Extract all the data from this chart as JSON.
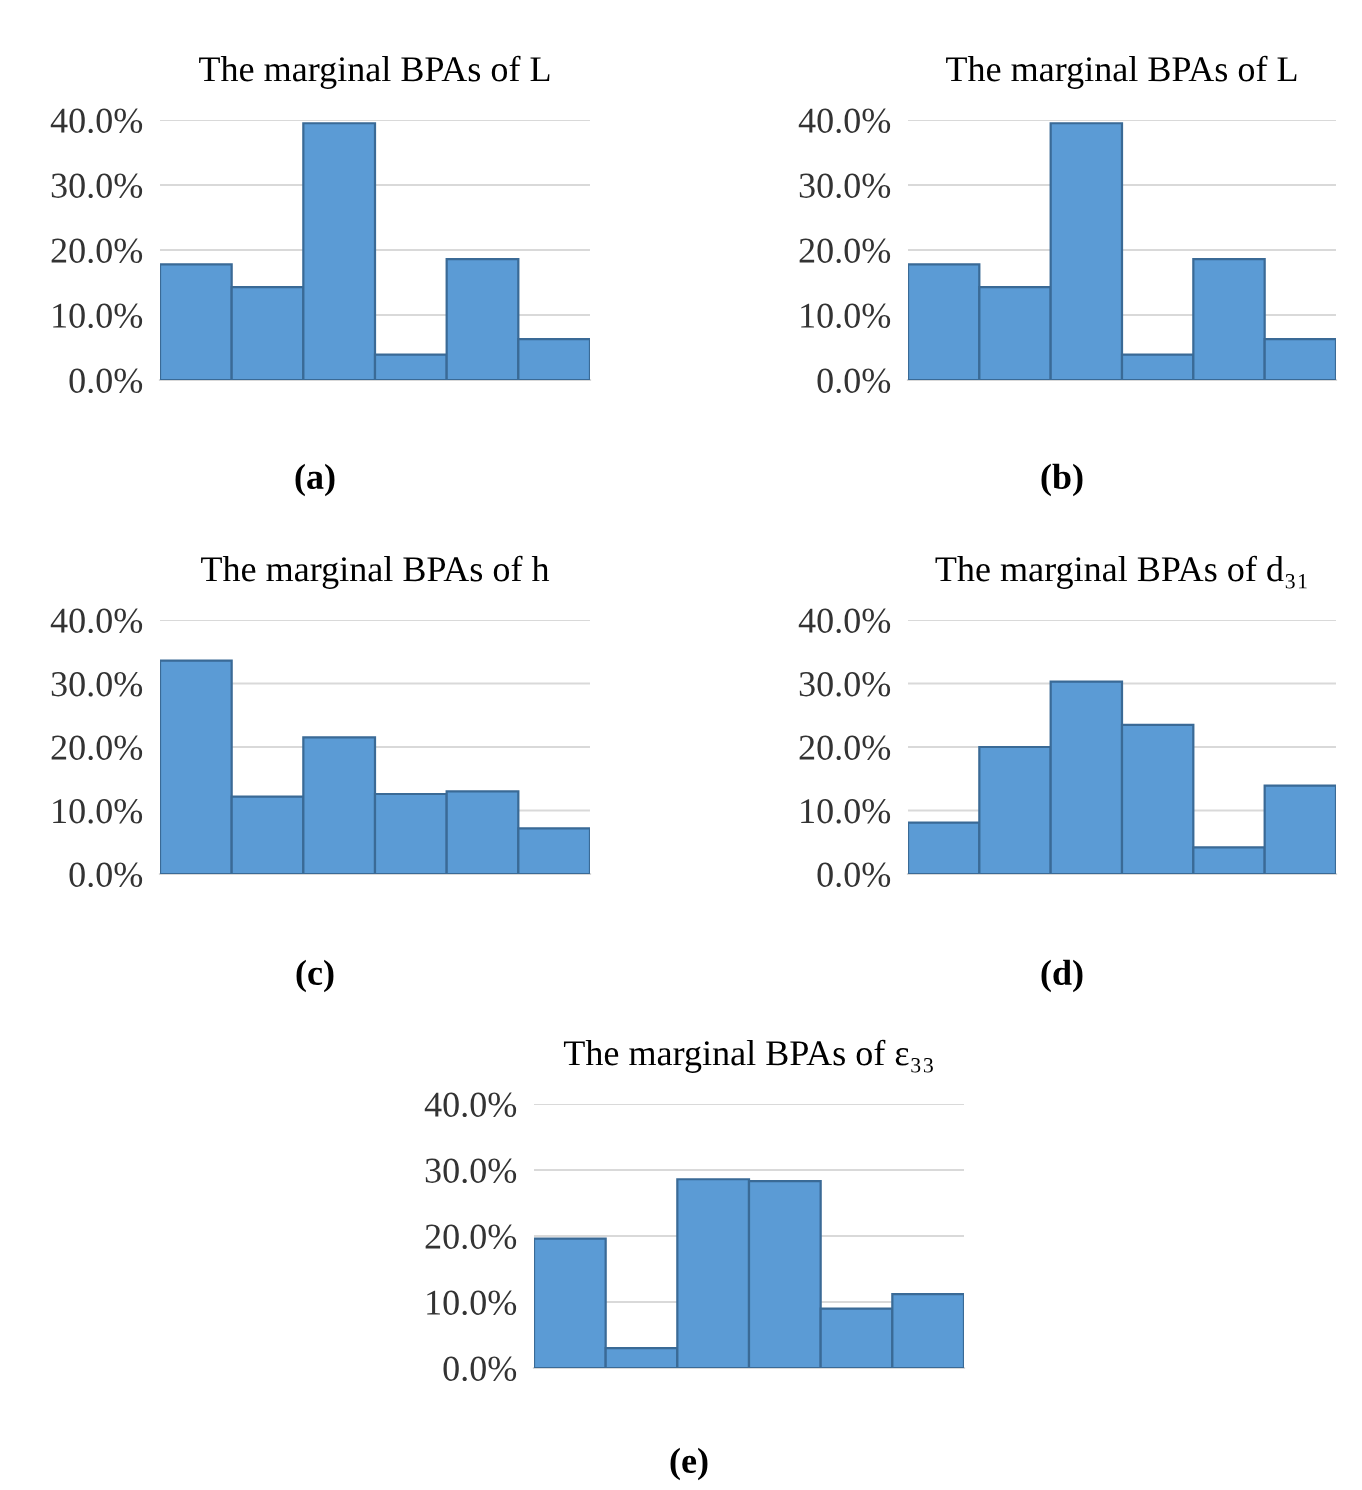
{
  "chart_data": [
    {
      "type": "bar",
      "title": "The marginal BPAs of L",
      "categories": [
        null,
        null,
        null,
        null,
        null,
        null
      ],
      "values": [
        17.8,
        14.3,
        39.5,
        3.9,
        18.6,
        6.3
      ],
      "color": "#5b9bd5",
      "ylim": [
        0,
        40
      ],
      "yticks": [
        {
          "value": 0,
          "label": "0.0%"
        },
        {
          "value": 10,
          "label": "10.0%"
        },
        {
          "value": 20,
          "label": "20.0%"
        },
        {
          "value": 30,
          "label": "30.0%"
        },
        {
          "value": 40,
          "label": "40.0%"
        }
      ],
      "grid": "y",
      "tick_labels": "y",
      "annotations": [
        "(a)"
      ]
    },
    {
      "type": "bar",
      "title": "The marginal BPAs of L",
      "categories": [
        null,
        null,
        null,
        null,
        null,
        null
      ],
      "values": [
        17.8,
        14.3,
        39.5,
        3.9,
        18.6,
        6.3
      ],
      "color": "#5b9bd5",
      "ylim": [
        0,
        40
      ],
      "yticks": [
        {
          "value": 0,
          "label": "0.0%"
        },
        {
          "value": 10,
          "label": "10.0%"
        },
        {
          "value": 20,
          "label": "20.0%"
        },
        {
          "value": 30,
          "label": "30.0%"
        },
        {
          "value": 40,
          "label": "40.0%"
        }
      ],
      "grid": "y",
      "tick_labels": "y",
      "annotations": [
        "(b)"
      ]
    },
    {
      "type": "bar",
      "title": "The marginal BPAs of h",
      "categories": [
        null,
        null,
        null,
        null,
        null,
        null
      ],
      "values": [
        33.6,
        12.2,
        21.5,
        12.6,
        13.0,
        7.2
      ],
      "color": "#5b9bd5",
      "ylim": [
        0,
        40
      ],
      "yticks": [
        {
          "value": 0,
          "label": "0.0%"
        },
        {
          "value": 10,
          "label": "10.0%"
        },
        {
          "value": 20,
          "label": "20.0%"
        },
        {
          "value": 30,
          "label": "30.0%"
        },
        {
          "value": 40,
          "label": "40.0%"
        }
      ],
      "grid": "y",
      "tick_labels": "y",
      "annotations": [
        "(c)"
      ]
    },
    {
      "type": "bar",
      "title": "The marginal BPAs of d₃₁",
      "categories": [
        null,
        null,
        null,
        null,
        null,
        null
      ],
      "values": [
        8.1,
        20.0,
        30.3,
        23.5,
        4.2,
        13.9
      ],
      "color": "#5b9bd5",
      "ylim": [
        0,
        40
      ],
      "yticks": [
        {
          "value": 0,
          "label": "0.0%"
        },
        {
          "value": 10,
          "label": "10.0%"
        },
        {
          "value": 20,
          "label": "20.0%"
        },
        {
          "value": 30,
          "label": "30.0%"
        },
        {
          "value": 40,
          "label": "40.0%"
        }
      ],
      "grid": "y",
      "tick_labels": "y",
      "annotations": [
        "(d)"
      ]
    },
    {
      "type": "bar",
      "title": "The marginal BPAs of ε₃₃",
      "categories": [
        null,
        null,
        null,
        null,
        null,
        null
      ],
      "values": [
        19.6,
        3.0,
        28.6,
        28.3,
        9.0,
        11.2
      ],
      "color": "#5b9bd5",
      "ylim": [
        0,
        40
      ],
      "yticks": [
        {
          "value": 0,
          "label": "0.0%"
        },
        {
          "value": 10,
          "label": "10.0%"
        },
        {
          "value": 20,
          "label": "20.0%"
        },
        {
          "value": 30,
          "label": "30.0%"
        },
        {
          "value": 40,
          "label": "40.0%"
        }
      ],
      "grid": "y",
      "tick_labels": "y",
      "annotations": [
        "(e)"
      ]
    }
  ]
}
